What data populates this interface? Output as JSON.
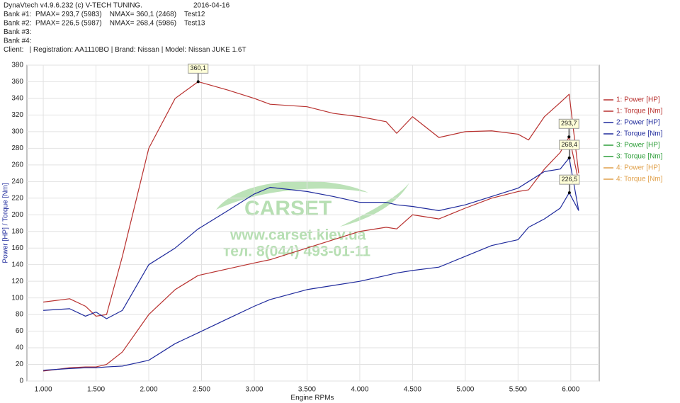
{
  "header": {
    "software": "DynaVtech v4.9.6.232 (c) V-TECH TUNING.",
    "date": "2016-04-16",
    "banks": [
      "Bank #1:  PMAX= 293,7 (5983)    NMAX= 360,1 (2468)    Test12",
      "Bank #2:  PMAX= 226,5 (5987)    NMAX= 268,4 (5986)    Test13",
      "Bank #3:",
      "Bank #4:"
    ],
    "client": "Client:   | Registration: AA1110BO | Brand: Nissan | Model: Nissan JUKE 1.6T"
  },
  "watermark": {
    "brand": "CARSET",
    "url": "www.carset.kiev.ua",
    "phone": "тел. 8(044) 493-01-11"
  },
  "chart_data": {
    "type": "line",
    "x_label": "Engine RPMs",
    "y_label": "Power [HP] / Torque [Nm]",
    "x": [
      1000,
      1250,
      1400,
      1500,
      1600,
      1750,
      2000,
      2250,
      2468,
      2750,
      3000,
      3150,
      3500,
      3750,
      4000,
      4250,
      4350,
      4500,
      4750,
      5000,
      5250,
      5500,
      5600,
      5750,
      5900,
      5985,
      6075
    ],
    "series": [
      {
        "name": "1: Power [HP]",
        "color": "#b8312f",
        "values": [
          12,
          16,
          17,
          17,
          20,
          35,
          80,
          110,
          127,
          135,
          142,
          146,
          160,
          170,
          180,
          185,
          183,
          200,
          195,
          208,
          220,
          228,
          230,
          255,
          275,
          293.7,
          240
        ]
      },
      {
        "name": "1: Torque [Nm]",
        "color": "#b8312f",
        "values": [
          95,
          99,
          90,
          78,
          80,
          150,
          280,
          340,
          360.1,
          350,
          340,
          333,
          330,
          322,
          318,
          312,
          298,
          318,
          293,
          300,
          301,
          297,
          290,
          318,
          335,
          345,
          250
        ]
      },
      {
        "name": "2: Power [HP]",
        "color": "#1f2a9c",
        "values": [
          13,
          15,
          16,
          16,
          17,
          18,
          25,
          45,
          58,
          75,
          90,
          98,
          110,
          115,
          120,
          127,
          130,
          133,
          137,
          150,
          163,
          170,
          185,
          195,
          208,
          226.5,
          205
        ]
      },
      {
        "name": "2: Torque [Nm]",
        "color": "#1f2a9c",
        "values": [
          85,
          87,
          78,
          83,
          75,
          85,
          140,
          160,
          183,
          205,
          225,
          233,
          228,
          222,
          215,
          215,
          212,
          210,
          205,
          212,
          222,
          232,
          240,
          252,
          255,
          268.4,
          205
        ]
      },
      {
        "name": "3: Power [HP]",
        "color": "#2e9e3a",
        "values": [
          null,
          null,
          null,
          null,
          null,
          null,
          null,
          null,
          null,
          null,
          null,
          null,
          null,
          null,
          null,
          null,
          null,
          null,
          null,
          null,
          null,
          null,
          null,
          null,
          null,
          null,
          null
        ]
      },
      {
        "name": "3: Torque [Nm]",
        "color": "#2e9e3a",
        "values": [
          null,
          null,
          null,
          null,
          null,
          null,
          null,
          null,
          null,
          null,
          null,
          null,
          null,
          null,
          null,
          null,
          null,
          null,
          null,
          null,
          null,
          null,
          null,
          null,
          null,
          null,
          null
        ]
      },
      {
        "name": "4: Power [HP]",
        "color": "#e0a04a",
        "values": [
          null,
          null,
          null,
          null,
          null,
          null,
          null,
          null,
          null,
          null,
          null,
          null,
          null,
          null,
          null,
          null,
          null,
          null,
          null,
          null,
          null,
          null,
          null,
          null,
          null,
          null,
          null
        ]
      },
      {
        "name": "4: Torque [Nm]",
        "color": "#e0a04a",
        "values": [
          null,
          null,
          null,
          null,
          null,
          null,
          null,
          null,
          null,
          null,
          null,
          null,
          null,
          null,
          null,
          null,
          null,
          null,
          null,
          null,
          null,
          null,
          null,
          null,
          null,
          null,
          null
        ]
      }
    ],
    "annotations": [
      {
        "x": 2468,
        "y": 360.1,
        "label": "360,1"
      },
      {
        "x": 5983,
        "y": 293.7,
        "label": "293,7"
      },
      {
        "x": 5986,
        "y": 268.4,
        "label": "268,4"
      },
      {
        "x": 5987,
        "y": 226.5,
        "label": "226,5"
      }
    ],
    "xlim": [
      845,
      6270
    ],
    "ylim": [
      0,
      380
    ],
    "xticks": [
      {
        "value": 1000,
        "label": "1.000"
      },
      {
        "value": 1500,
        "label": "1.500"
      },
      {
        "value": 2000,
        "label": "2.000"
      },
      {
        "value": 2500,
        "label": "2.500"
      },
      {
        "value": 3000,
        "label": "3.000"
      },
      {
        "value": 3500,
        "label": "3.500"
      },
      {
        "value": 4000,
        "label": "4.000"
      },
      {
        "value": 4500,
        "label": "4.500"
      },
      {
        "value": 5000,
        "label": "5.000"
      },
      {
        "value": 5500,
        "label": "5.500"
      },
      {
        "value": 6000,
        "label": "6.000"
      }
    ],
    "yticks": [
      0,
      20,
      40,
      60,
      80,
      100,
      120,
      140,
      160,
      180,
      200,
      220,
      240,
      260,
      280,
      300,
      320,
      340,
      360,
      380
    ],
    "grid": true
  }
}
